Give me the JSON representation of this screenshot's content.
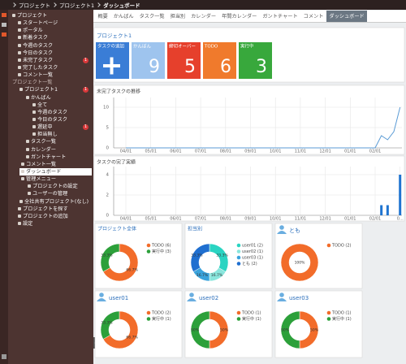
{
  "header": {
    "breadcrumb": [
      "プロジェクト",
      "プロジェクト1",
      "ダッシュボード"
    ]
  },
  "sidebar": {
    "selected": 21,
    "sections": [
      9
    ],
    "items": [
      {
        "label": "プロジェクト"
      },
      {
        "label": "スタートページ"
      },
      {
        "label": "ポータル"
      },
      {
        "label": "新着タスク"
      },
      {
        "label": "今週のタスク"
      },
      {
        "label": "今日のタスク"
      },
      {
        "label": "未完了タスク",
        "badge": "1"
      },
      {
        "label": "完了したタスク"
      },
      {
        "label": "コメント一覧"
      },
      {
        "label": "プロジェクト一覧"
      },
      {
        "label": "プロジェクト1",
        "badge": "1"
      },
      {
        "label": "かんばん"
      },
      {
        "label": "全て"
      },
      {
        "label": "今週のタスク"
      },
      {
        "label": "今日のタスク"
      },
      {
        "label": "遅延中",
        "badge": "1"
      },
      {
        "label": "担当無し"
      },
      {
        "label": "タスク一覧"
      },
      {
        "label": "カレンダー"
      },
      {
        "label": "ガントチャート"
      },
      {
        "label": "コメント一覧"
      },
      {
        "label": "ダッシュボード"
      },
      {
        "label": "管理メニュー"
      },
      {
        "label": "プロジェクトの設定"
      },
      {
        "label": "ユーザーの管理"
      },
      {
        "label": "全社共有プロジェクト(なし)"
      },
      {
        "label": "プロジェクトを探す"
      },
      {
        "label": "プロジェクトの追加"
      },
      {
        "label": "設定"
      }
    ]
  },
  "tabs": {
    "active": 8,
    "items": [
      "概要",
      "かんばん",
      "タスク一覧",
      "担当別",
      "カレンダー",
      "年間カレンダー",
      "ガントチャート",
      "コメント",
      "ダッシュボード"
    ]
  },
  "panel": {
    "title": "プロジェクト1",
    "tiles": [
      {
        "label": "タスクの追加",
        "color": "#3a7dd6"
      },
      {
        "label": "かんばん",
        "value": 9,
        "color": "#9ec4ee"
      },
      {
        "label": "締切オーバー",
        "value": 5,
        "color": "#e6402c"
      },
      {
        "label": "TODO",
        "value": 6,
        "color": "#f07a2c"
      },
      {
        "label": "実行中",
        "value": 3,
        "color": "#38a83c"
      }
    ]
  },
  "charts": [
    {
      "type": "line",
      "title": "未完了タスクの推移",
      "color": "#5b9bd5",
      "categories": [
        "04/01",
        null,
        null,
        null,
        "05/01",
        null,
        null,
        null,
        "06/01",
        null,
        null,
        null,
        "07/01",
        null,
        null,
        null,
        "08/01",
        null,
        null,
        null,
        "09/01",
        null,
        null,
        null,
        "10/01",
        null,
        null,
        null,
        "11/01",
        null,
        null,
        null,
        "12/01",
        null,
        null,
        null,
        "01/01",
        null,
        null,
        null,
        "02/01",
        null,
        null,
        null,
        null
      ],
      "values": [
        0,
        0,
        0,
        0,
        0,
        0,
        0,
        0,
        0,
        0,
        0,
        0,
        0,
        0,
        0,
        0,
        0,
        0,
        0,
        0,
        0,
        0,
        0,
        0,
        0,
        0,
        0,
        0,
        0,
        0,
        0,
        0,
        0,
        0,
        0,
        0,
        0,
        0,
        0,
        0,
        0,
        3,
        2,
        4,
        10
      ],
      "ylim": [
        0,
        12.4
      ],
      "yticks": [
        0,
        5,
        10
      ]
    },
    {
      "type": "bar",
      "title": "タスクの完了実績",
      "color": "#1f74d0",
      "categories": [
        "04/01",
        null,
        null,
        null,
        "05/01",
        null,
        null,
        null,
        "06/01",
        null,
        null,
        null,
        "07/01",
        null,
        null,
        null,
        "08/01",
        null,
        null,
        null,
        "09/01",
        null,
        null,
        null,
        "10/01",
        null,
        null,
        null,
        "11/01",
        null,
        null,
        null,
        "12/01",
        null,
        null,
        null,
        "01/01",
        null,
        null,
        null,
        "02/01",
        null,
        null,
        null,
        "0..."
      ],
      "values": [
        0,
        0,
        0,
        0,
        0,
        0,
        0,
        0,
        0,
        0,
        0,
        0,
        0,
        0,
        0,
        0,
        0,
        0,
        0,
        0,
        0,
        0,
        0,
        0,
        0,
        0,
        0,
        0,
        0,
        0,
        0,
        0,
        0,
        0,
        0,
        0,
        0,
        0,
        0,
        0,
        0,
        1,
        1,
        0,
        4
      ],
      "ylim": [
        0,
        4.8
      ],
      "yticks": [
        0,
        2,
        4
      ]
    }
  ],
  "donuts": [
    {
      "type": "pie",
      "title": "プロジェクト全体",
      "labels": [
        "TODO (6)",
        "実行中 (3)"
      ],
      "colors": [
        "#f26c2a",
        "#2ca03a"
      ],
      "values": [
        66.7,
        33.3
      ],
      "value_labels": [
        "66.7%",
        "33.3%"
      ]
    },
    {
      "type": "pie",
      "title": "担当別",
      "labels": [
        "user01 (2)",
        "user02 (1)",
        "user03 (1)",
        "とも (2)"
      ],
      "colors": [
        "#2ad4c2",
        "#8ae6dd",
        "#3ba3dc",
        "#1f6fd0"
      ],
      "values": [
        33.3,
        16.7,
        16.7,
        33.3
      ],
      "value_labels": [
        "33.3%",
        "16.7%",
        "16.7%",
        "33.3%"
      ]
    },
    {
      "type": "pie",
      "title": "とも",
      "icon": "user",
      "labels": [
        "TODO (2)"
      ],
      "colors": [
        "#f26c2a"
      ],
      "values": [
        100
      ],
      "value_labels": [
        "100%"
      ]
    },
    {
      "type": "pie",
      "title": "user01",
      "icon": "user",
      "labels": [
        "TODO (2)",
        "実行中 (1)"
      ],
      "colors": [
        "#f26c2a",
        "#2ca03a"
      ],
      "values": [
        66.7,
        33.3
      ],
      "value_labels": [
        "66.7%",
        "33.3%"
      ]
    },
    {
      "type": "pie",
      "title": "user02",
      "icon": "user",
      "labels": [
        "TODO (1)",
        "実行中 (1)"
      ],
      "colors": [
        "#f26c2a",
        "#2ca03a"
      ],
      "values": [
        50,
        50
      ],
      "value_labels": [
        "50%",
        "50%"
      ]
    },
    {
      "type": "pie",
      "title": "user03",
      "icon": "user",
      "labels": [
        "TODO (1)",
        "実行中 (1)"
      ],
      "colors": [
        "#f26c2a",
        "#2ca03a"
      ],
      "values": [
        50,
        50
      ],
      "value_labels": [
        "50%",
        "50%"
      ]
    }
  ]
}
